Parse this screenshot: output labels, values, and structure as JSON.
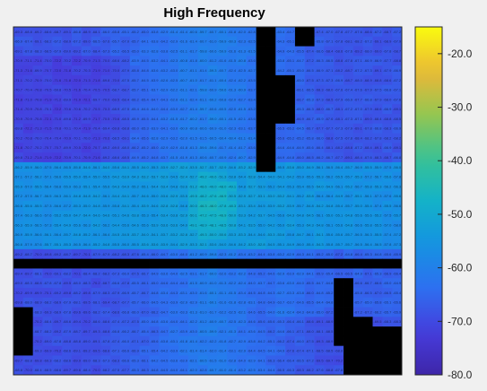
{
  "chart_data": {
    "type": "heatmap",
    "title": "High Frequency",
    "xlabel": "",
    "ylabel": "",
    "rows": 36,
    "cols": 40,
    "colormap": "parula",
    "colorbar": {
      "range": [
        -80,
        -15
      ],
      "ticks": [
        -20,
        -30,
        -40,
        -50,
        -60,
        -70,
        -80
      ],
      "tick_labels": [
        "-20.0",
        "-30.0",
        "-40.0",
        "-50.0",
        "-60.0",
        "-70.0",
        "-80.0"
      ]
    },
    "cell_labels": "each cell prints its dB value (about -73 to -45)",
    "masked_color": "#000000",
    "background_color": "#f0f0f0",
    "colors": {
      "low": "#3e26a8",
      "mid_low": "#2c6ff0",
      "mid": "#1aa8cf",
      "mid_high": "#3cc47c",
      "high": "#f9fb0e"
    }
  }
}
